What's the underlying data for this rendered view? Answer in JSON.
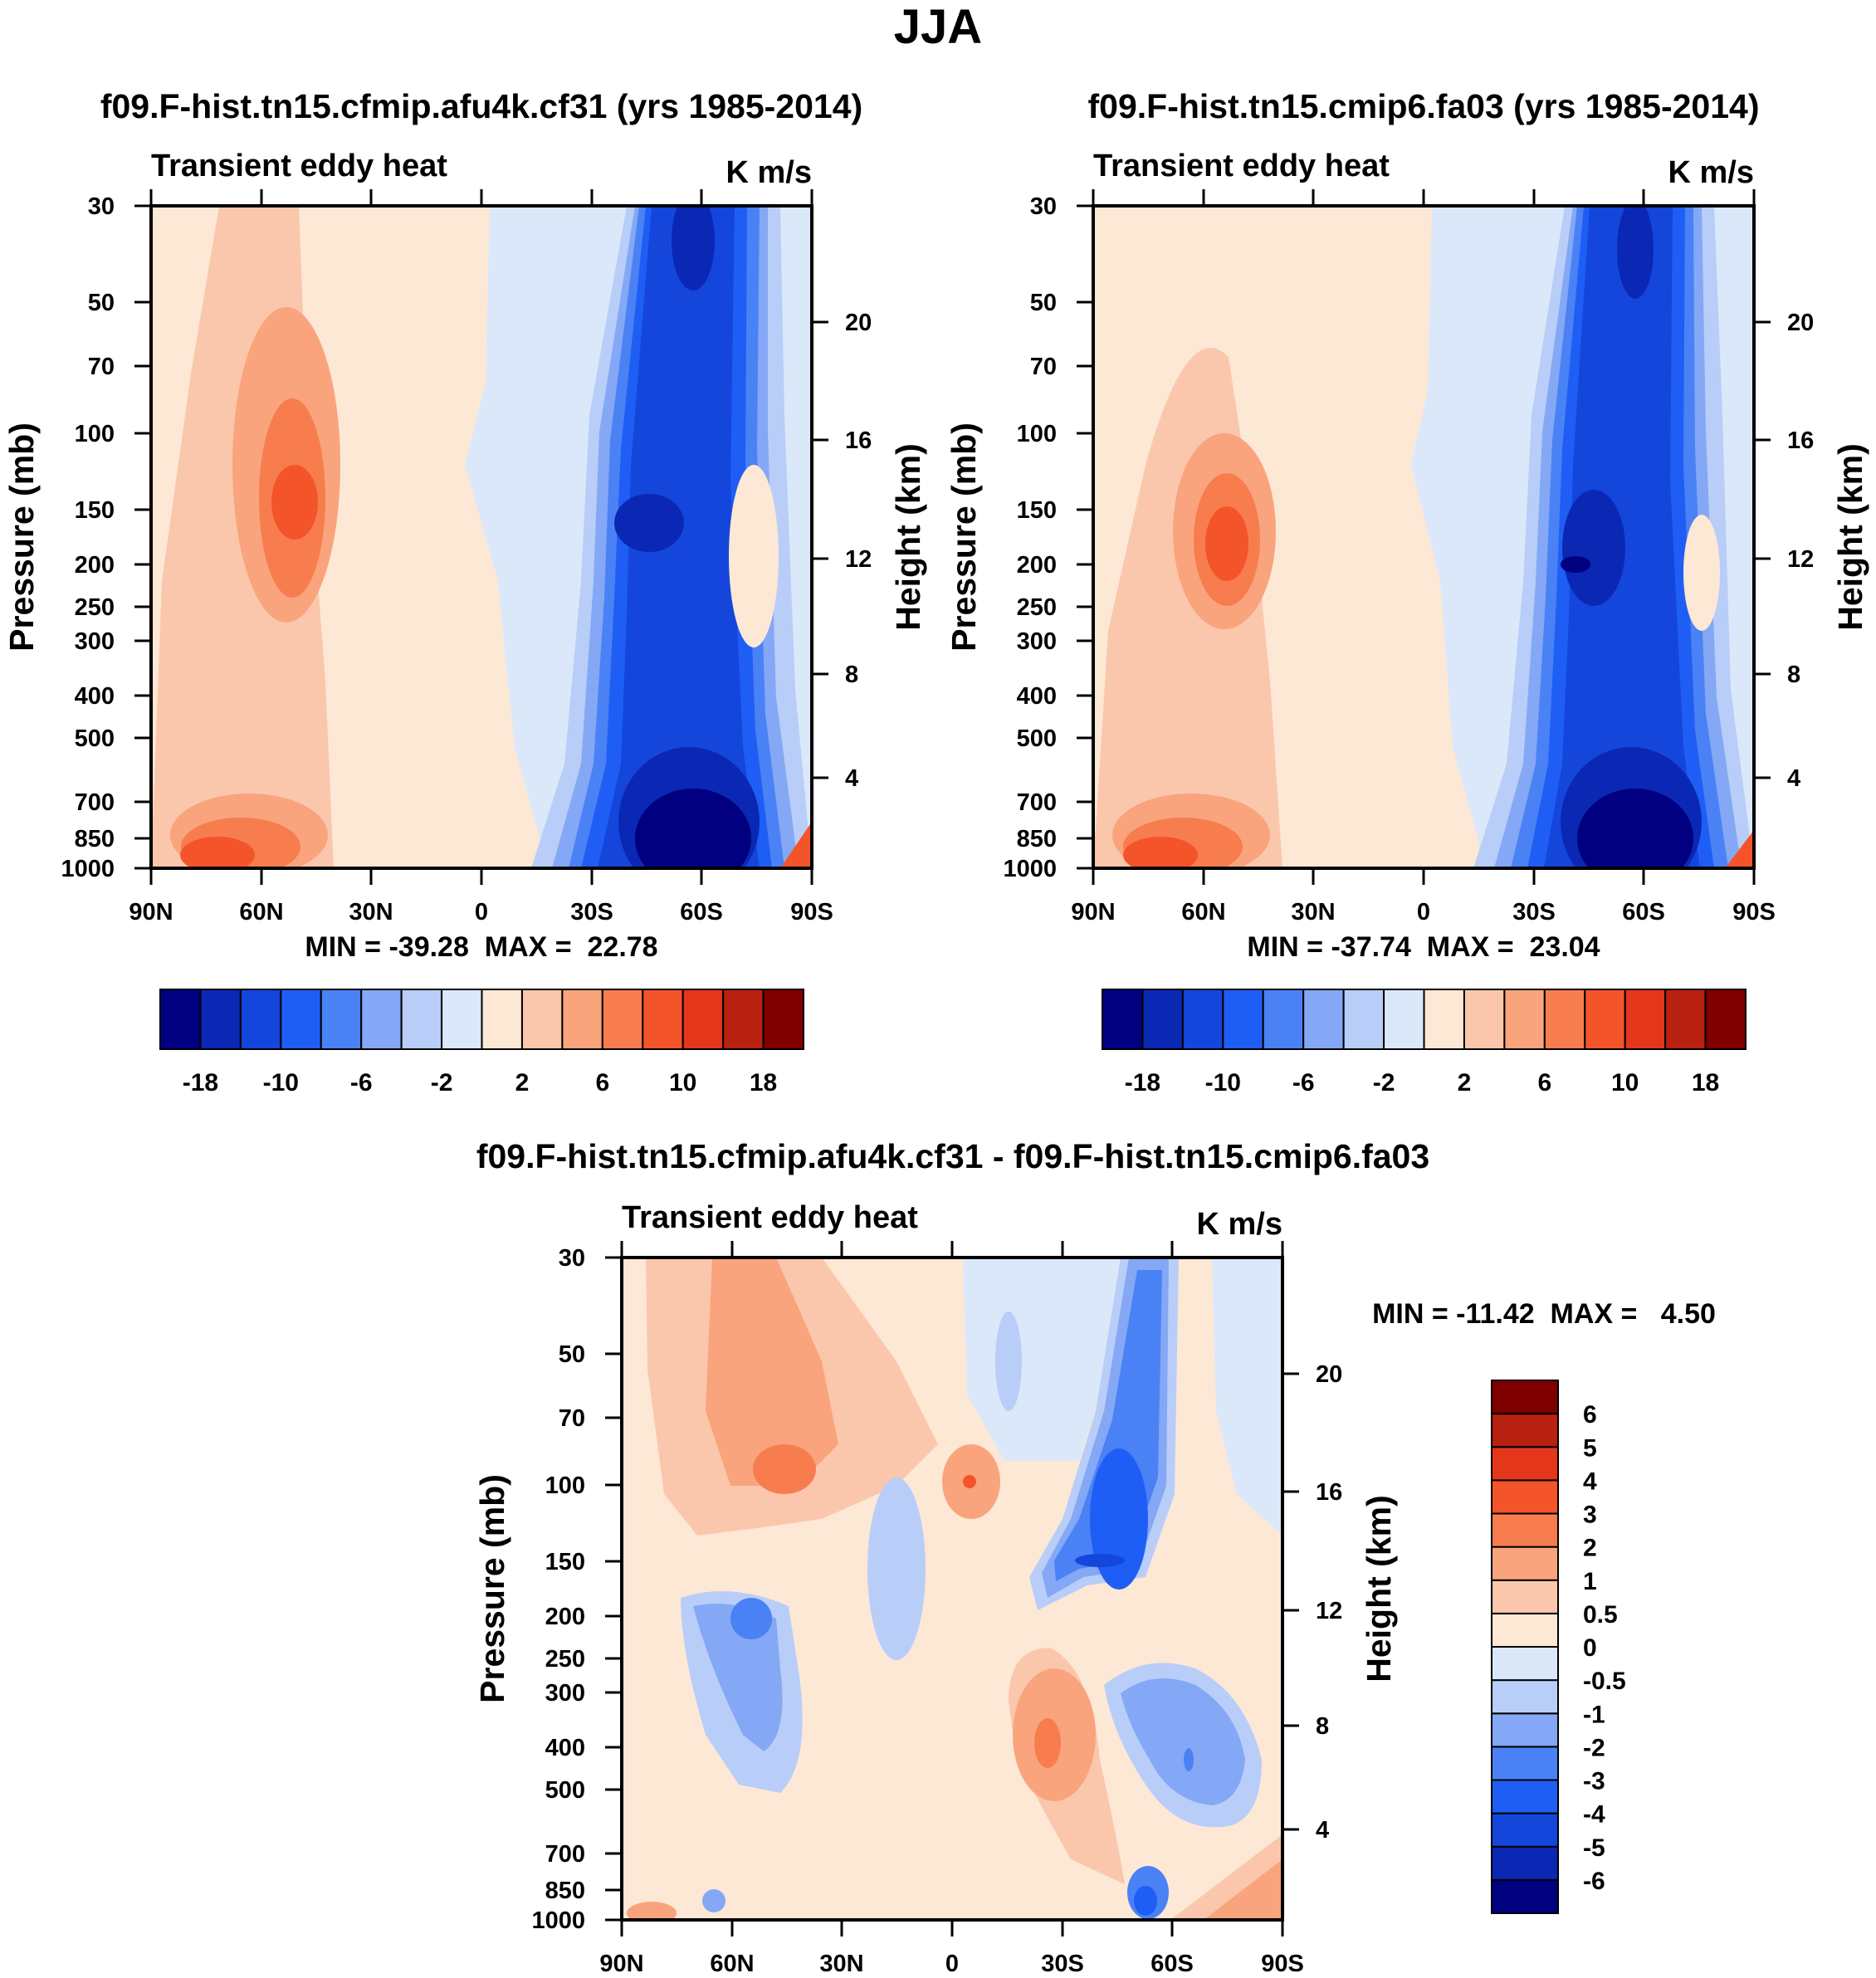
{
  "chart_data": {
    "type": "heatmap",
    "title": "JJA",
    "panels": [
      {
        "id": "left",
        "title": "f09.F-hist.tn15.cfmip.afu4k.cf31 (yrs 1985-2014)",
        "left_label": "Transient eddy heat",
        "right_label": "K m/s",
        "ylabel": "Pressure (mb)",
        "ylabel_right": "Height (km)",
        "x_ticks": [
          "90N",
          "60N",
          "30N",
          "0",
          "30S",
          "60S",
          "90S"
        ],
        "y_ticks": [
          "30",
          "50",
          "70",
          "100",
          "150",
          "200",
          "250",
          "300",
          "400",
          "500",
          "700",
          "850",
          "1000"
        ],
        "height_ticks": [
          "20",
          "16",
          "12",
          "8",
          "4"
        ],
        "minmax": "MIN = -39.28  MAX =  22.78",
        "min": -39.28,
        "max": 22.78
      },
      {
        "id": "right",
        "title": "f09.F-hist.tn15.cmip6.fa03 (yrs 1985-2014)",
        "left_label": "Transient eddy heat",
        "right_label": "K m/s",
        "ylabel": "Pressure (mb)",
        "ylabel_right": "Height (km)",
        "x_ticks": [
          "90N",
          "60N",
          "30N",
          "0",
          "30S",
          "60S",
          "90S"
        ],
        "y_ticks": [
          "30",
          "50",
          "70",
          "100",
          "150",
          "200",
          "250",
          "300",
          "400",
          "500",
          "700",
          "850",
          "1000"
        ],
        "height_ticks": [
          "20",
          "16",
          "12",
          "8",
          "4"
        ],
        "minmax": "MIN = -37.74  MAX =  23.04",
        "min": -37.74,
        "max": 23.04
      },
      {
        "id": "diff",
        "title": "f09.F-hist.tn15.cfmip.afu4k.cf31 - f09.F-hist.tn15.cmip6.fa03",
        "left_label": "Transient eddy heat",
        "right_label": "K m/s",
        "ylabel": "Pressure (mb)",
        "ylabel_right": "Height (km)",
        "x_ticks": [
          "90N",
          "60N",
          "30N",
          "0",
          "30S",
          "60S",
          "90S"
        ],
        "y_ticks": [
          "30",
          "50",
          "70",
          "100",
          "150",
          "200",
          "250",
          "300",
          "400",
          "500",
          "700",
          "850",
          "1000"
        ],
        "height_ticks": [
          "20",
          "16",
          "12",
          "8",
          "4"
        ],
        "minmax": "MIN = -11.42  MAX =   4.50",
        "min": -11.42,
        "max": 4.5
      }
    ],
    "colorbar_main": {
      "colors": [
        "#000080",
        "#0a28b4",
        "#1446dc",
        "#1e5ef5",
        "#4a82f5",
        "#84a8f5",
        "#b8cef8",
        "#dbe8fa",
        "#fde8d6",
        "#fbc7ac",
        "#f9a47c",
        "#f77d4e",
        "#f4542a",
        "#e4361a",
        "#b82010",
        "#800000"
      ],
      "labels": [
        "-18",
        "-10",
        "-6",
        "-2",
        "2",
        "6",
        "10",
        "18"
      ]
    },
    "colorbar_diff": {
      "colors": [
        "#000080",
        "#0a28b4",
        "#1446dc",
        "#1e5ef5",
        "#4a82f5",
        "#84a8f5",
        "#b8cef8",
        "#dbe8fa",
        "#fde8d6",
        "#fbc7ac",
        "#f9a47c",
        "#f77d4e",
        "#f4542a",
        "#e4361a",
        "#b82010",
        "#800000"
      ],
      "labels": [
        "-6",
        "-5",
        "-4",
        "-3",
        "-2",
        "-1",
        "-0.5",
        "0",
        "0.5",
        "1",
        "2",
        "3",
        "4",
        "5",
        "6"
      ]
    }
  }
}
